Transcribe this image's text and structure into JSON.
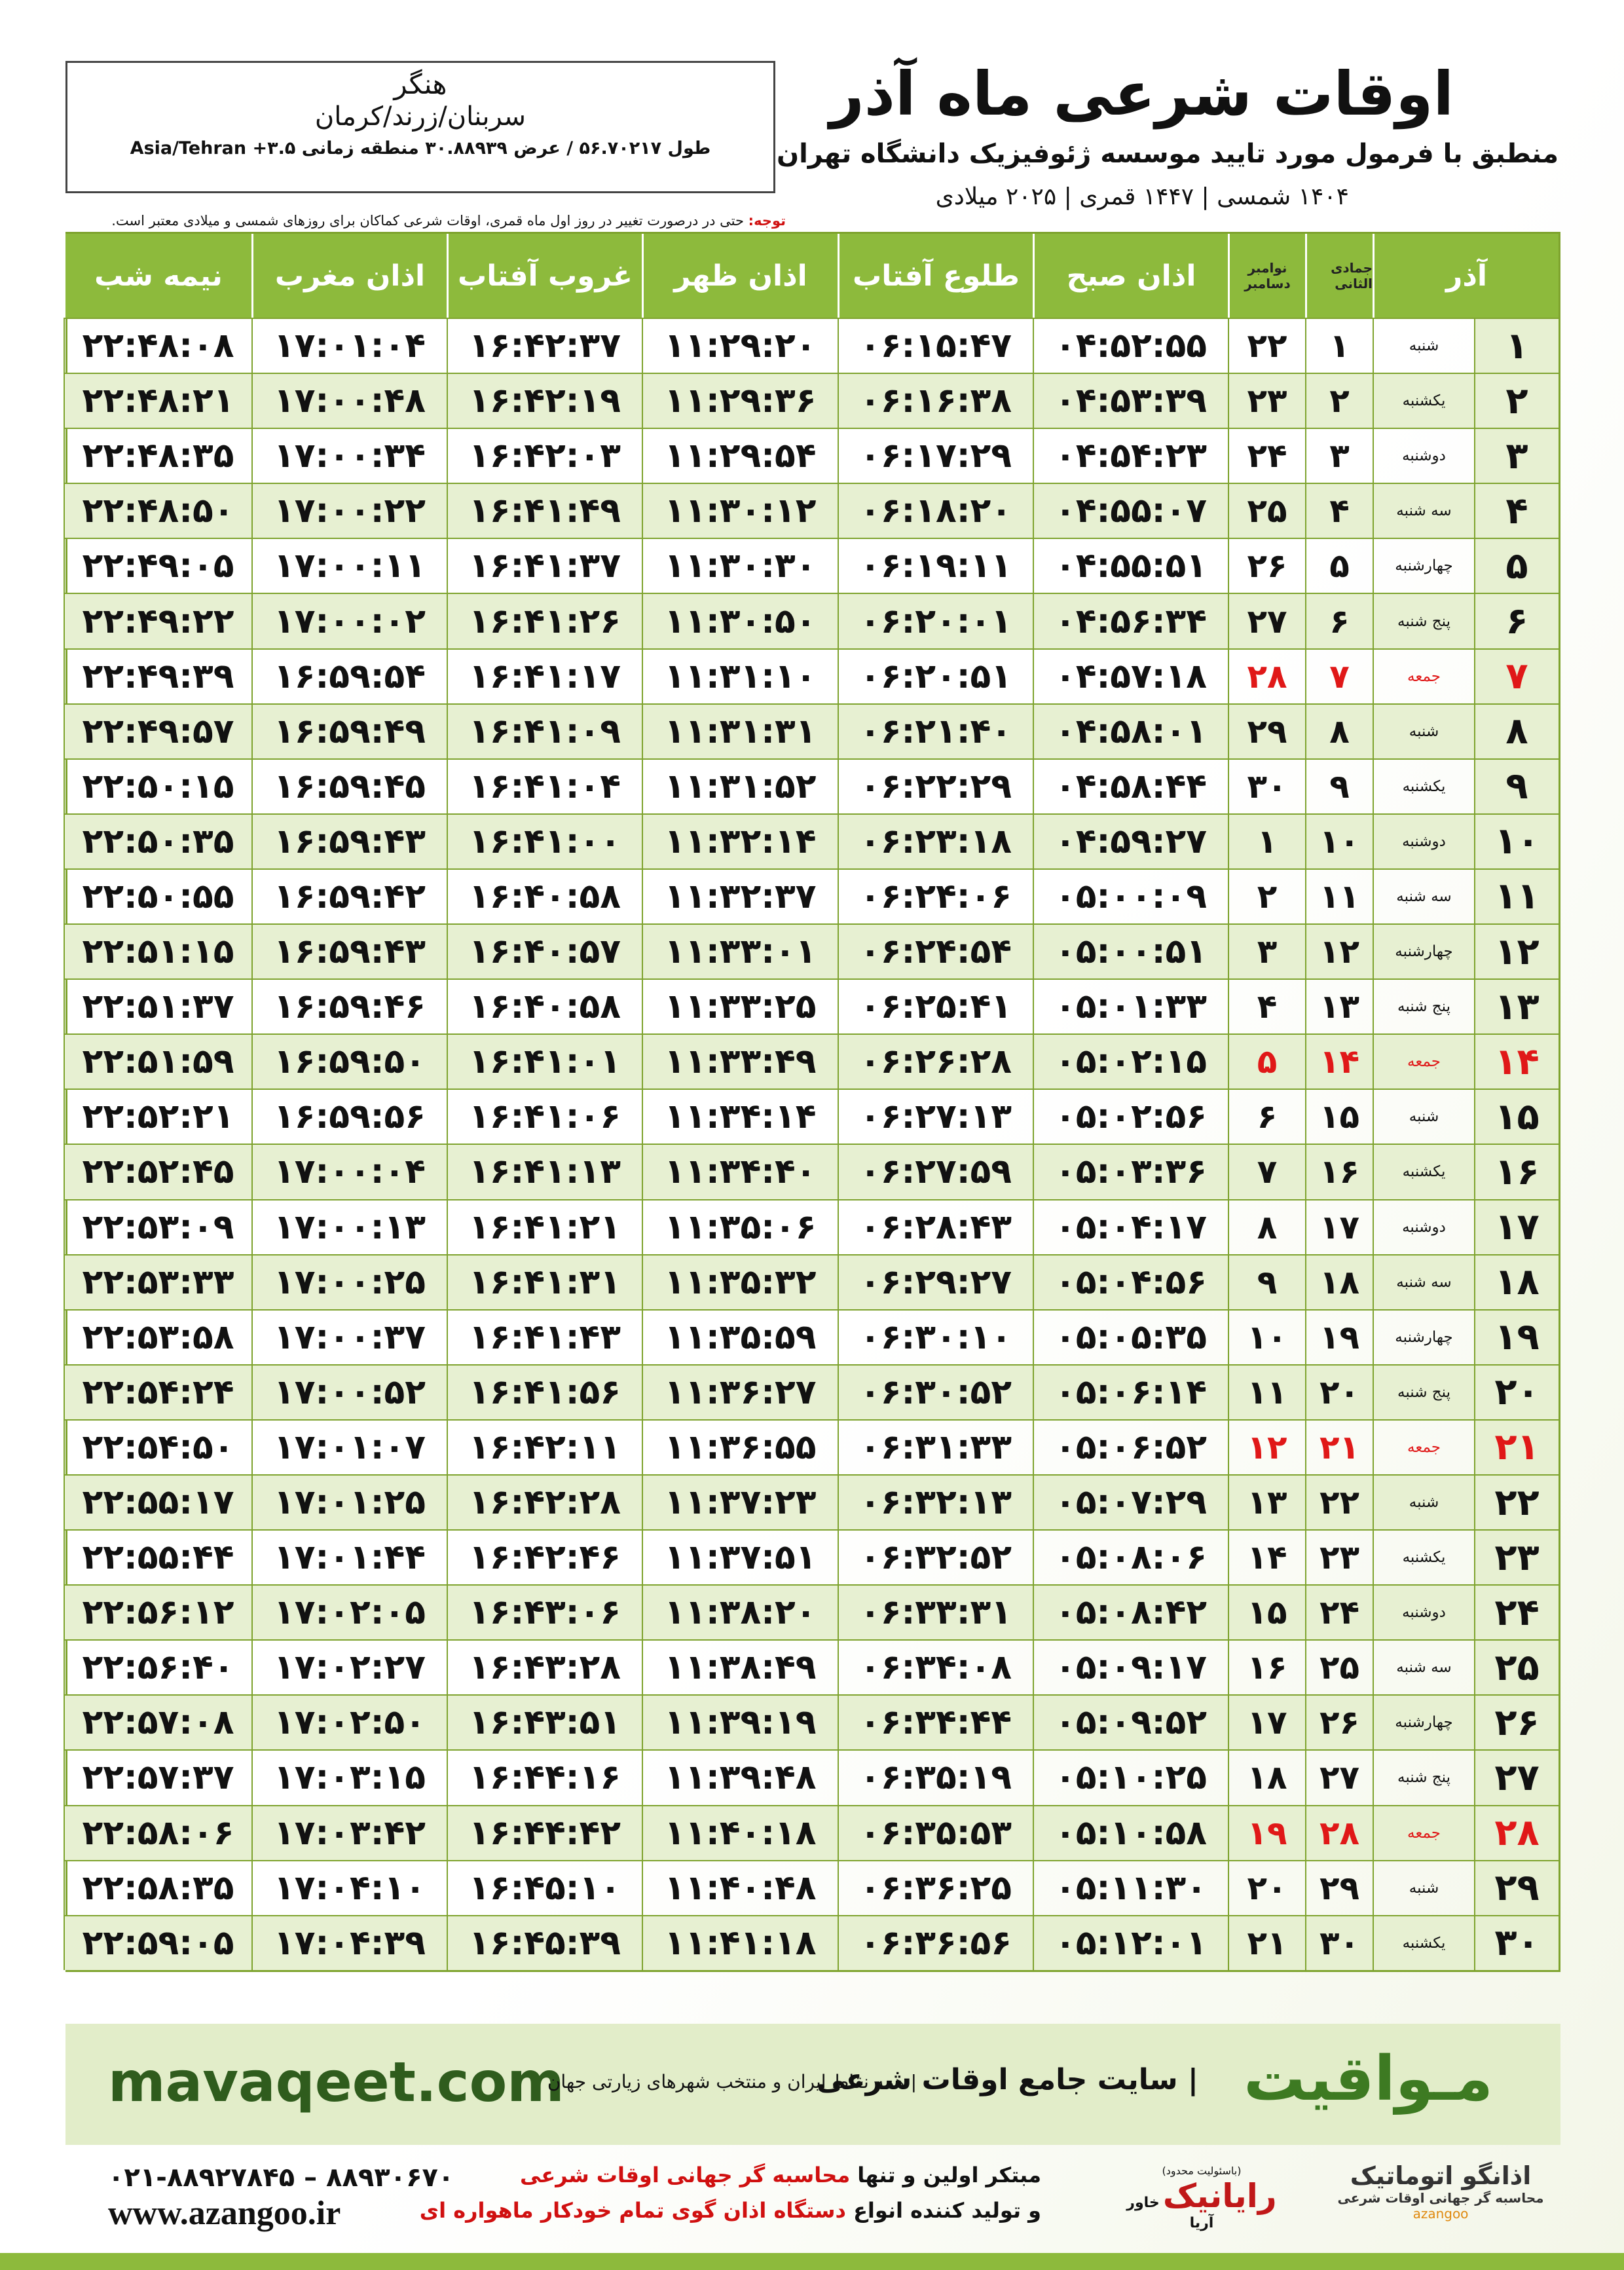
{
  "header": {
    "title": "اوقات شرعی ماه آذر",
    "subtitle": "منطبق با فرمول مورد تایید موسسه ژئوفیزیک دانشگاه تهران",
    "dates": "۱۴۰۴ شمسی | ۱۴۴۷ قمری | ۲۰۲۵ میلادی",
    "location": {
      "name": "هنگر",
      "region": "سربنان/زرند/کرمان",
      "coords": "طول ۵۶.۷۰۲۱۷ / عرض ۳۰.۸۸۹۳۹ منطقه زمانی ۳.۵+ Asia/Tehran"
    },
    "notice": {
      "label": "توجه:",
      "text": "حتی در درصورت تغییر در روز اول ماه قمری، اوقات شرعی کماکان برای روزهای شمسی و میلادی معتبر است."
    }
  },
  "table": {
    "headers": {
      "month": "آذر",
      "hijri_month": "جمادی الثانی",
      "greg_months": [
        "نوامبر",
        "دسامبر"
      ],
      "times": [
        "اذان صبح",
        "طلوع آفتاب",
        "اذان ظهر",
        "غروب آفتاب",
        "اذان مغرب",
        "نیمه شب"
      ]
    },
    "holiday_color": "#e01818",
    "rows": [
      {
        "cells": [
          "۱",
          "شنبه",
          "۱",
          "۲۲",
          "۰۴:۵۲:۵۵",
          "۰۶:۱۵:۴۷",
          "۱۱:۲۹:۲۰",
          "۱۶:۴۲:۳۷",
          "۱۷:۰۱:۰۴",
          "۲۲:۴۸:۰۸"
        ]
      },
      {
        "cells": [
          "۲",
          "یکشنبه",
          "۲",
          "۲۳",
          "۰۴:۵۳:۳۹",
          "۰۶:۱۶:۳۸",
          "۱۱:۲۹:۳۶",
          "۱۶:۴۲:۱۹",
          "۱۷:۰۰:۴۸",
          "۲۲:۴۸:۲۱"
        ]
      },
      {
        "cells": [
          "۳",
          "دوشنبه",
          "۳",
          "۲۴",
          "۰۴:۵۴:۲۳",
          "۰۶:۱۷:۲۹",
          "۱۱:۲۹:۵۴",
          "۱۶:۴۲:۰۳",
          "۱۷:۰۰:۳۴",
          "۲۲:۴۸:۳۵"
        ]
      },
      {
        "cells": [
          "۴",
          "سه شنبه",
          "۴",
          "۲۵",
          "۰۴:۵۵:۰۷",
          "۰۶:۱۸:۲۰",
          "۱۱:۳۰:۱۲",
          "۱۶:۴۱:۴۹",
          "۱۷:۰۰:۲۲",
          "۲۲:۴۸:۵۰"
        ]
      },
      {
        "cells": [
          "۵",
          "چهارشنبه",
          "۵",
          "۲۶",
          "۰۴:۵۵:۵۱",
          "۰۶:۱۹:۱۱",
          "۱۱:۳۰:۳۰",
          "۱۶:۴۱:۳۷",
          "۱۷:۰۰:۱۱",
          "۲۲:۴۹:۰۵"
        ]
      },
      {
        "cells": [
          "۶",
          "پنج شنبه",
          "۶",
          "۲۷",
          "۰۴:۵۶:۳۴",
          "۰۶:۲۰:۰۱",
          "۱۱:۳۰:۵۰",
          "۱۶:۴۱:۲۶",
          "۱۷:۰۰:۰۲",
          "۲۲:۴۹:۲۲"
        ]
      },
      {
        "cells": [
          "۷",
          "جمعه",
          "۷",
          "۲۸",
          "۰۴:۵۷:۱۸",
          "۰۶:۲۰:۵۱",
          "۱۱:۳۱:۱۰",
          "۱۶:۴۱:۱۷",
          "۱۶:۵۹:۵۴",
          "۲۲:۴۹:۳۹"
        ],
        "holiday": true
      },
      {
        "cells": [
          "۸",
          "شنبه",
          "۸",
          "۲۹",
          "۰۴:۵۸:۰۱",
          "۰۶:۲۱:۴۰",
          "۱۱:۳۱:۳۱",
          "۱۶:۴۱:۰۹",
          "۱۶:۵۹:۴۹",
          "۲۲:۴۹:۵۷"
        ]
      },
      {
        "cells": [
          "۹",
          "یکشنبه",
          "۹",
          "۳۰",
          "۰۴:۵۸:۴۴",
          "۰۶:۲۲:۲۹",
          "۱۱:۳۱:۵۲",
          "۱۶:۴۱:۰۴",
          "۱۶:۵۹:۴۵",
          "۲۲:۵۰:۱۵"
        ]
      },
      {
        "cells": [
          "۱۰",
          "دوشنبه",
          "۱۰",
          "۱",
          "۰۴:۵۹:۲۷",
          "۰۶:۲۳:۱۸",
          "۱۱:۳۲:۱۴",
          "۱۶:۴۱:۰۰",
          "۱۶:۵۹:۴۳",
          "۲۲:۵۰:۳۵"
        ]
      },
      {
        "cells": [
          "۱۱",
          "سه شنبه",
          "۱۱",
          "۲",
          "۰۵:۰۰:۰۹",
          "۰۶:۲۴:۰۶",
          "۱۱:۳۲:۳۷",
          "۱۶:۴۰:۵۸",
          "۱۶:۵۹:۴۲",
          "۲۲:۵۰:۵۵"
        ]
      },
      {
        "cells": [
          "۱۲",
          "چهارشنبه",
          "۱۲",
          "۳",
          "۰۵:۰۰:۵۱",
          "۰۶:۲۴:۵۴",
          "۱۱:۳۳:۰۱",
          "۱۶:۴۰:۵۷",
          "۱۶:۵۹:۴۳",
          "۲۲:۵۱:۱۵"
        ]
      },
      {
        "cells": [
          "۱۳",
          "پنج شنبه",
          "۱۳",
          "۴",
          "۰۵:۰۱:۳۳",
          "۰۶:۲۵:۴۱",
          "۱۱:۳۳:۲۵",
          "۱۶:۴۰:۵۸",
          "۱۶:۵۹:۴۶",
          "۲۲:۵۱:۳۷"
        ]
      },
      {
        "cells": [
          "۱۴",
          "جمعه",
          "۱۴",
          "۵",
          "۰۵:۰۲:۱۵",
          "۰۶:۲۶:۲۸",
          "۱۱:۳۳:۴۹",
          "۱۶:۴۱:۰۱",
          "۱۶:۵۹:۵۰",
          "۲۲:۵۱:۵۹"
        ],
        "holiday": true
      },
      {
        "cells": [
          "۱۵",
          "شنبه",
          "۱۵",
          "۶",
          "۰۵:۰۲:۵۶",
          "۰۶:۲۷:۱۳",
          "۱۱:۳۴:۱۴",
          "۱۶:۴۱:۰۶",
          "۱۶:۵۹:۵۶",
          "۲۲:۵۲:۲۱"
        ]
      },
      {
        "cells": [
          "۱۶",
          "یکشنبه",
          "۱۶",
          "۷",
          "۰۵:۰۳:۳۶",
          "۰۶:۲۷:۵۹",
          "۱۱:۳۴:۴۰",
          "۱۶:۴۱:۱۳",
          "۱۷:۰۰:۰۴",
          "۲۲:۵۲:۴۵"
        ]
      },
      {
        "cells": [
          "۱۷",
          "دوشنبه",
          "۱۷",
          "۸",
          "۰۵:۰۴:۱۷",
          "۰۶:۲۸:۴۳",
          "۱۱:۳۵:۰۶",
          "۱۶:۴۱:۲۱",
          "۱۷:۰۰:۱۳",
          "۲۲:۵۳:۰۹"
        ]
      },
      {
        "cells": [
          "۱۸",
          "سه شنبه",
          "۱۸",
          "۹",
          "۰۵:۰۴:۵۶",
          "۰۶:۲۹:۲۷",
          "۱۱:۳۵:۳۲",
          "۱۶:۴۱:۳۱",
          "۱۷:۰۰:۲۵",
          "۲۲:۵۳:۳۳"
        ]
      },
      {
        "cells": [
          "۱۹",
          "چهارشنبه",
          "۱۹",
          "۱۰",
          "۰۵:۰۵:۳۵",
          "۰۶:۳۰:۱۰",
          "۱۱:۳۵:۵۹",
          "۱۶:۴۱:۴۳",
          "۱۷:۰۰:۳۷",
          "۲۲:۵۳:۵۸"
        ]
      },
      {
        "cells": [
          "۲۰",
          "پنج شنبه",
          "۲۰",
          "۱۱",
          "۰۵:۰۶:۱۴",
          "۰۶:۳۰:۵۲",
          "۱۱:۳۶:۲۷",
          "۱۶:۴۱:۵۶",
          "۱۷:۰۰:۵۲",
          "۲۲:۵۴:۲۴"
        ]
      },
      {
        "cells": [
          "۲۱",
          "جمعه",
          "۲۱",
          "۱۲",
          "۰۵:۰۶:۵۲",
          "۰۶:۳۱:۳۳",
          "۱۱:۳۶:۵۵",
          "۱۶:۴۲:۱۱",
          "۱۷:۰۱:۰۷",
          "۲۲:۵۴:۵۰"
        ],
        "holiday": true
      },
      {
        "cells": [
          "۲۲",
          "شنبه",
          "۲۲",
          "۱۳",
          "۰۵:۰۷:۲۹",
          "۰۶:۳۲:۱۳",
          "۱۱:۳۷:۲۳",
          "۱۶:۴۲:۲۸",
          "۱۷:۰۱:۲۵",
          "۲۲:۵۵:۱۷"
        ]
      },
      {
        "cells": [
          "۲۳",
          "یکشنبه",
          "۲۳",
          "۱۴",
          "۰۵:۰۸:۰۶",
          "۰۶:۳۲:۵۲",
          "۱۱:۳۷:۵۱",
          "۱۶:۴۲:۴۶",
          "۱۷:۰۱:۴۴",
          "۲۲:۵۵:۴۴"
        ]
      },
      {
        "cells": [
          "۲۴",
          "دوشنبه",
          "۲۴",
          "۱۵",
          "۰۵:۰۸:۴۲",
          "۰۶:۳۳:۳۱",
          "۱۱:۳۸:۲۰",
          "۱۶:۴۳:۰۶",
          "۱۷:۰۲:۰۵",
          "۲۲:۵۶:۱۲"
        ]
      },
      {
        "cells": [
          "۲۵",
          "سه شنبه",
          "۲۵",
          "۱۶",
          "۰۵:۰۹:۱۷",
          "۰۶:۳۴:۰۸",
          "۱۱:۳۸:۴۹",
          "۱۶:۴۳:۲۸",
          "۱۷:۰۲:۲۷",
          "۲۲:۵۶:۴۰"
        ]
      },
      {
        "cells": [
          "۲۶",
          "چهارشنبه",
          "۲۶",
          "۱۷",
          "۰۵:۰۹:۵۲",
          "۰۶:۳۴:۴۴",
          "۱۱:۳۹:۱۹",
          "۱۶:۴۳:۵۱",
          "۱۷:۰۲:۵۰",
          "۲۲:۵۷:۰۸"
        ]
      },
      {
        "cells": [
          "۲۷",
          "پنج شنبه",
          "۲۷",
          "۱۸",
          "۰۵:۱۰:۲۵",
          "۰۶:۳۵:۱۹",
          "۱۱:۳۹:۴۸",
          "۱۶:۴۴:۱۶",
          "۱۷:۰۳:۱۵",
          "۲۲:۵۷:۳۷"
        ]
      },
      {
        "cells": [
          "۲۸",
          "جمعه",
          "۲۸",
          "۱۹",
          "۰۵:۱۰:۵۸",
          "۰۶:۳۵:۵۳",
          "۱۱:۴۰:۱۸",
          "۱۶:۴۴:۴۲",
          "۱۷:۰۳:۴۲",
          "۲۲:۵۸:۰۶"
        ],
        "holiday": true
      },
      {
        "cells": [
          "۲۹",
          "شنبه",
          "۲۹",
          "۲۰",
          "۰۵:۱۱:۳۰",
          "۰۶:۳۶:۲۵",
          "۱۱:۴۰:۴۸",
          "۱۶:۴۵:۱۰",
          "۱۷:۰۴:۱۰",
          "۲۲:۵۸:۳۵"
        ]
      },
      {
        "cells": [
          "۳۰",
          "یکشنبه",
          "۳۰",
          "۲۱",
          "۰۵:۱۲:۰۱",
          "۰۶:۳۶:۵۶",
          "۱۱:۴۱:۱۸",
          "۱۶:۴۵:۳۹",
          "۱۷:۰۴:۳۹",
          "۲۲:۵۹:۰۵"
        ]
      }
    ]
  },
  "footer": {
    "banner": {
      "brand": "مـواقیت",
      "slogan": "| سایت جامع اوقات شرعی",
      "sub": "| همه نقاط ایران و منتخب شهرهای زیارتی جهان",
      "url": "mavaqeet.com"
    },
    "phones": "۰۲۱-۸۸۹۲۷۸۴۵ – ۸۸۹۳۰۶۷۰",
    "website": "www.azangoo.ir",
    "line1": {
      "a": "مبتکر اولین و تنها",
      "b": "محاسبه گر جهانی اوقات شرعی"
    },
    "line2": {
      "a": "و تولید کننده انواع",
      "b": "دستگاه اذان گوی تمام خودکار ماهواره ای"
    },
    "logo1": {
      "note": "(باسئولیت محدود)",
      "name": "رایانیک",
      "sub": "خاور آریا"
    },
    "logo2": {
      "name": "اذانگو اتوماتیک",
      "sub": "محاسبه گر جهانی اوقات شرعی",
      "latin": "azangoo"
    }
  }
}
